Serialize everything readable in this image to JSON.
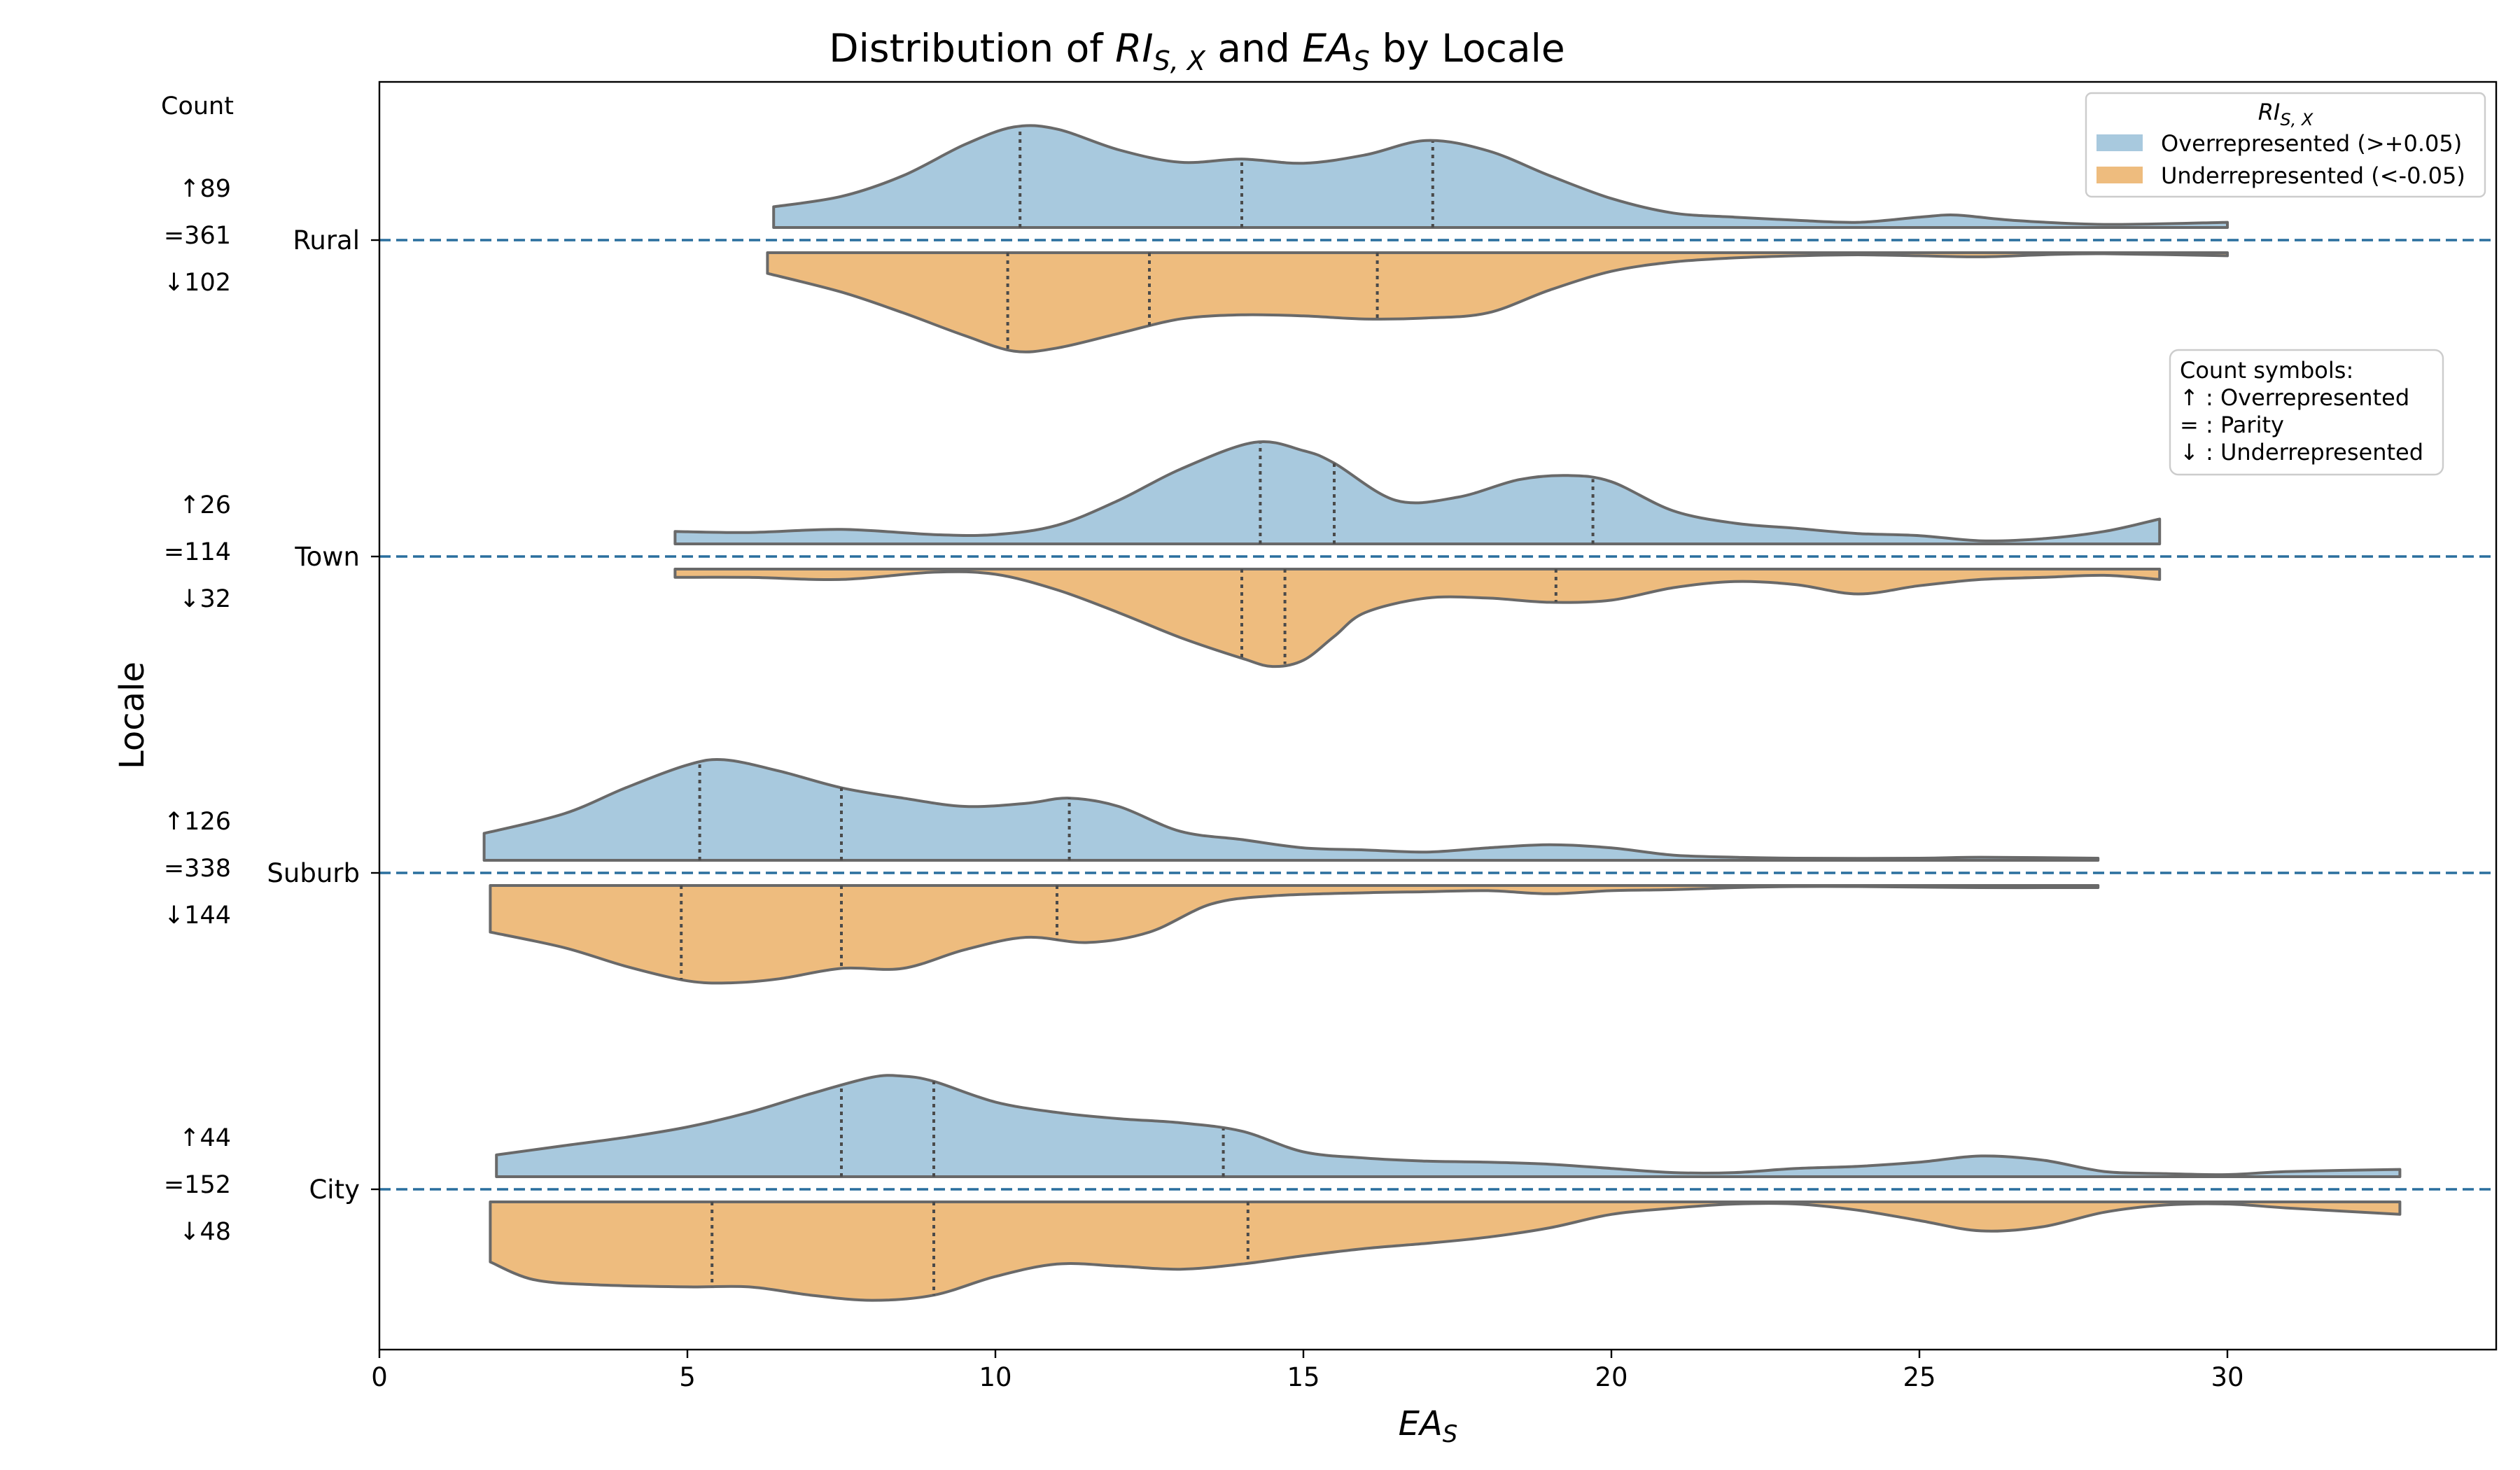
{
  "chart_data": {
    "type": "violin",
    "title_prefix": "Distribution of ",
    "title_ri_main": "RI",
    "title_ri_sub": "S, X",
    "title_middle": " and ",
    "title_ea_main": "EA",
    "title_ea_sub": "S",
    "title_suffix": " by Locale",
    "xlabel_main": "EA",
    "xlabel_sub": "S",
    "ylabel": "Locale",
    "xlim": [
      0,
      34.4
    ],
    "xticks": [
      0,
      5,
      10,
      15,
      20,
      25,
      30
    ],
    "count_header": "Count",
    "grid": false,
    "legend": {
      "title_main": "RI",
      "title_sub": "S, X",
      "placement": "top-right",
      "entries": [
        {
          "label": "Overrepresented (>+0.05)",
          "color": "#a8c9de"
        },
        {
          "label": "Underrepresented (<-0.05)",
          "color": "#eebc7e"
        }
      ]
    },
    "symbols_note": {
      "lines": [
        "Count symbols:",
        "↑ : Overrepresented",
        "= : Parity",
        "↓ : Underrepresented"
      ]
    },
    "categories": [
      {
        "name": "Rural",
        "counts": {
          "over": "↑89",
          "parity": "=361",
          "under": "↓102"
        },
        "over": {
          "range": [
            6.4,
            30.0
          ],
          "quartiles": [
            10.4,
            14.0,
            17.1
          ],
          "density": [
            [
              6.4,
              0.2
            ],
            [
              7.5,
              0.3
            ],
            [
              8.5,
              0.5
            ],
            [
              9.5,
              0.8
            ],
            [
              10.3,
              0.97
            ],
            [
              11,
              0.95
            ],
            [
              12,
              0.75
            ],
            [
              13,
              0.63
            ],
            [
              14,
              0.66
            ],
            [
              15,
              0.62
            ],
            [
              16,
              0.7
            ],
            [
              17,
              0.84
            ],
            [
              18,
              0.74
            ],
            [
              19,
              0.5
            ],
            [
              20,
              0.28
            ],
            [
              21,
              0.14
            ],
            [
              22,
              0.1
            ],
            [
              23,
              0.07
            ],
            [
              24,
              0.05
            ],
            [
              25,
              0.1
            ],
            [
              25.6,
              0.12
            ],
            [
              26.5,
              0.07
            ],
            [
              28,
              0.03
            ],
            [
              30,
              0.05
            ]
          ]
        },
        "under": {
          "range": [
            6.3,
            30.0
          ],
          "quartiles": [
            10.2,
            12.5,
            16.2
          ],
          "density": [
            [
              6.3,
              0.2
            ],
            [
              7.5,
              0.38
            ],
            [
              8.5,
              0.58
            ],
            [
              9.5,
              0.8
            ],
            [
              10.3,
              0.95
            ],
            [
              11,
              0.92
            ],
            [
              12,
              0.78
            ],
            [
              13,
              0.64
            ],
            [
              14,
              0.6
            ],
            [
              15,
              0.61
            ],
            [
              16,
              0.64
            ],
            [
              17,
              0.63
            ],
            [
              18,
              0.58
            ],
            [
              19,
              0.36
            ],
            [
              20,
              0.18
            ],
            [
              21,
              0.09
            ],
            [
              22,
              0.05
            ],
            [
              23,
              0.03
            ],
            [
              24,
              0.02
            ],
            [
              25,
              0.03
            ],
            [
              26,
              0.04
            ],
            [
              27,
              0.02
            ],
            [
              28,
              0.01
            ],
            [
              30,
              0.03
            ]
          ]
        }
      },
      {
        "name": "Town",
        "counts": {
          "over": "↑26",
          "parity": "=114",
          "under": "↓32"
        },
        "over": {
          "range": [
            4.8,
            28.9
          ],
          "quartiles": [
            14.3,
            15.5,
            19.7
          ],
          "density": [
            [
              4.8,
              0.12
            ],
            [
              6,
              0.11
            ],
            [
              7.5,
              0.14
            ],
            [
              9,
              0.09
            ],
            [
              10,
              0.09
            ],
            [
              11,
              0.18
            ],
            [
              12,
              0.42
            ],
            [
              13,
              0.72
            ],
            [
              14.2,
              0.98
            ],
            [
              15,
              0.9
            ],
            [
              15.5,
              0.78
            ],
            [
              16.5,
              0.42
            ],
            [
              17.5,
              0.45
            ],
            [
              18.5,
              0.62
            ],
            [
              19.3,
              0.66
            ],
            [
              20,
              0.6
            ],
            [
              21,
              0.32
            ],
            [
              22,
              0.2
            ],
            [
              23,
              0.15
            ],
            [
              24,
              0.1
            ],
            [
              25,
              0.08
            ],
            [
              26,
              0.03
            ],
            [
              27,
              0.05
            ],
            [
              28,
              0.12
            ],
            [
              28.9,
              0.24
            ]
          ]
        },
        "under": {
          "range": [
            4.8,
            28.9
          ],
          "quartiles": [
            14.0,
            14.7,
            19.1
          ],
          "density": [
            [
              4.8,
              0.08
            ],
            [
              6,
              0.08
            ],
            [
              7.5,
              0.1
            ],
            [
              9,
              0.03
            ],
            [
              10,
              0.05
            ],
            [
              11,
              0.2
            ],
            [
              12,
              0.42
            ],
            [
              13,
              0.66
            ],
            [
              14,
              0.86
            ],
            [
              14.5,
              0.94
            ],
            [
              15,
              0.88
            ],
            [
              15.5,
              0.65
            ],
            [
              16,
              0.42
            ],
            [
              17,
              0.28
            ],
            [
              18,
              0.28
            ],
            [
              19,
              0.32
            ],
            [
              20,
              0.3
            ],
            [
              21,
              0.18
            ],
            [
              22,
              0.12
            ],
            [
              23,
              0.15
            ],
            [
              24,
              0.24
            ],
            [
              25,
              0.16
            ],
            [
              26,
              0.1
            ],
            [
              27,
              0.08
            ],
            [
              28,
              0.06
            ],
            [
              28.9,
              0.1
            ]
          ]
        }
      },
      {
        "name": "Suburb",
        "counts": {
          "over": "↑126",
          "parity": "=338",
          "under": "↓144"
        },
        "over": {
          "range": [
            1.7,
            27.9
          ],
          "quartiles": [
            5.2,
            7.5,
            11.2
          ],
          "density": [
            [
              1.7,
              0.26
            ],
            [
              3,
              0.45
            ],
            [
              4,
              0.7
            ],
            [
              5,
              0.92
            ],
            [
              5.6,
              0.97
            ],
            [
              6.5,
              0.86
            ],
            [
              7.5,
              0.7
            ],
            [
              8.5,
              0.6
            ],
            [
              9.5,
              0.52
            ],
            [
              10.5,
              0.55
            ],
            [
              11.2,
              0.6
            ],
            [
              12,
              0.52
            ],
            [
              13,
              0.28
            ],
            [
              14,
              0.2
            ],
            [
              15,
              0.12
            ],
            [
              16,
              0.1
            ],
            [
              17,
              0.08
            ],
            [
              18,
              0.12
            ],
            [
              19,
              0.15
            ],
            [
              20,
              0.12
            ],
            [
              21,
              0.05
            ],
            [
              22,
              0.03
            ],
            [
              23,
              0.02
            ],
            [
              25,
              0.02
            ],
            [
              26,
              0.03
            ],
            [
              27.9,
              0.02
            ]
          ]
        },
        "under": {
          "range": [
            1.8,
            27.9
          ],
          "quartiles": [
            4.9,
            7.5,
            11.0
          ],
          "density": [
            [
              1.8,
              0.45
            ],
            [
              3,
              0.6
            ],
            [
              4,
              0.78
            ],
            [
              5,
              0.92
            ],
            [
              5.7,
              0.94
            ],
            [
              6.5,
              0.9
            ],
            [
              7.5,
              0.8
            ],
            [
              8.5,
              0.8
            ],
            [
              9.5,
              0.62
            ],
            [
              10.5,
              0.5
            ],
            [
              11.5,
              0.55
            ],
            [
              12.5,
              0.45
            ],
            [
              13.5,
              0.18
            ],
            [
              14.5,
              0.1
            ],
            [
              16,
              0.07
            ],
            [
              17,
              0.06
            ],
            [
              18,
              0.05
            ],
            [
              19,
              0.08
            ],
            [
              20,
              0.05
            ],
            [
              21,
              0.04
            ],
            [
              22,
              0.02
            ],
            [
              23,
              0.01
            ],
            [
              24,
              0.01
            ],
            [
              26,
              0.02
            ],
            [
              27.9,
              0.02
            ]
          ]
        }
      },
      {
        "name": "City",
        "counts": {
          "over": "↑44",
          "parity": "=152",
          "under": "↓48"
        },
        "over": {
          "range": [
            1.9,
            32.8
          ],
          "quartiles": [
            7.5,
            9.0,
            13.7
          ],
          "density": [
            [
              1.9,
              0.21
            ],
            [
              3,
              0.3
            ],
            [
              4,
              0.38
            ],
            [
              5,
              0.48
            ],
            [
              6,
              0.62
            ],
            [
              7,
              0.8
            ],
            [
              8,
              0.96
            ],
            [
              8.5,
              0.97
            ],
            [
              9,
              0.92
            ],
            [
              10,
              0.72
            ],
            [
              11,
              0.62
            ],
            [
              12,
              0.56
            ],
            [
              13,
              0.52
            ],
            [
              14,
              0.44
            ],
            [
              15,
              0.24
            ],
            [
              16,
              0.18
            ],
            [
              17,
              0.15
            ],
            [
              18,
              0.14
            ],
            [
              19,
              0.12
            ],
            [
              20,
              0.08
            ],
            [
              21,
              0.04
            ],
            [
              22,
              0.04
            ],
            [
              23,
              0.08
            ],
            [
              24,
              0.1
            ],
            [
              25,
              0.14
            ],
            [
              26,
              0.2
            ],
            [
              27,
              0.16
            ],
            [
              28,
              0.05
            ],
            [
              29,
              0.03
            ],
            [
              30,
              0.02
            ],
            [
              31,
              0.05
            ],
            [
              32.8,
              0.07
            ]
          ]
        },
        "under": {
          "range": [
            1.8,
            32.8
          ],
          "quartiles": [
            5.4,
            9.0,
            14.1
          ],
          "density": [
            [
              1.8,
              0.58
            ],
            [
              2.5,
              0.75
            ],
            [
              3.5,
              0.8
            ],
            [
              5,
              0.82
            ],
            [
              6,
              0.82
            ],
            [
              7,
              0.9
            ],
            [
              8,
              0.95
            ],
            [
              9,
              0.9
            ],
            [
              10,
              0.72
            ],
            [
              11,
              0.6
            ],
            [
              12,
              0.62
            ],
            [
              13,
              0.65
            ],
            [
              14,
              0.6
            ],
            [
              15,
              0.52
            ],
            [
              16,
              0.45
            ],
            [
              17,
              0.4
            ],
            [
              18,
              0.34
            ],
            [
              19,
              0.25
            ],
            [
              20,
              0.12
            ],
            [
              21,
              0.06
            ],
            [
              22,
              0.02
            ],
            [
              23,
              0.02
            ],
            [
              24,
              0.08
            ],
            [
              25,
              0.18
            ],
            [
              26,
              0.28
            ],
            [
              27,
              0.24
            ],
            [
              28,
              0.1
            ],
            [
              29,
              0.03
            ],
            [
              30,
              0.02
            ],
            [
              31,
              0.06
            ],
            [
              32.8,
              0.12
            ]
          ]
        }
      }
    ]
  }
}
